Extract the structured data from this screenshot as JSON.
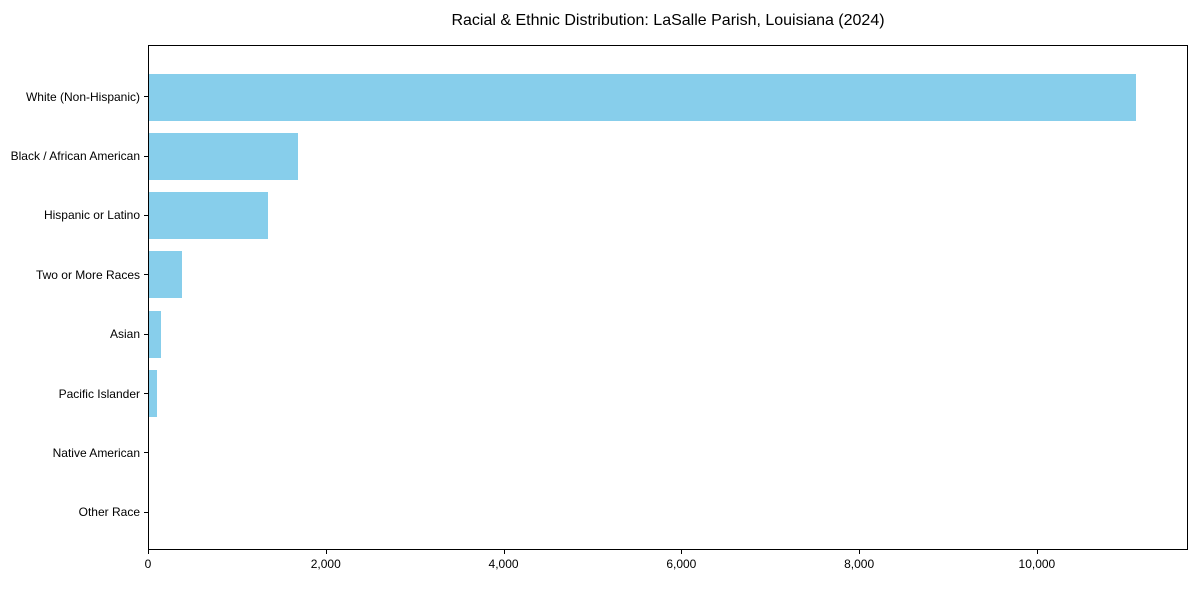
{
  "figure": {
    "background": "#ffffff",
    "spine_color": "#000000",
    "text_color": "#000000"
  },
  "chart_data": {
    "type": "bar",
    "orientation": "horizontal",
    "title": "Racial & Ethnic Distribution: LaSalle Parish, Louisiana (2024)",
    "xlabel": "",
    "ylabel": "",
    "categories": [
      "White (Non-Hispanic)",
      "Black / African American",
      "Hispanic or Latino",
      "Two or More Races",
      "Asian",
      "Pacific Islander",
      "Native American",
      "Other Race"
    ],
    "values": [
      11130,
      1680,
      1340,
      370,
      140,
      85,
      0,
      0
    ],
    "xlim": [
      0,
      11700
    ],
    "xticks": [
      0,
      2000,
      4000,
      6000,
      8000,
      10000
    ],
    "xtick_labels": [
      "0",
      "2,000",
      "4,000",
      "6,000",
      "8,000",
      "10,000"
    ],
    "bar_color": "#87CEEB",
    "grid": false,
    "legend_position": "none"
  }
}
